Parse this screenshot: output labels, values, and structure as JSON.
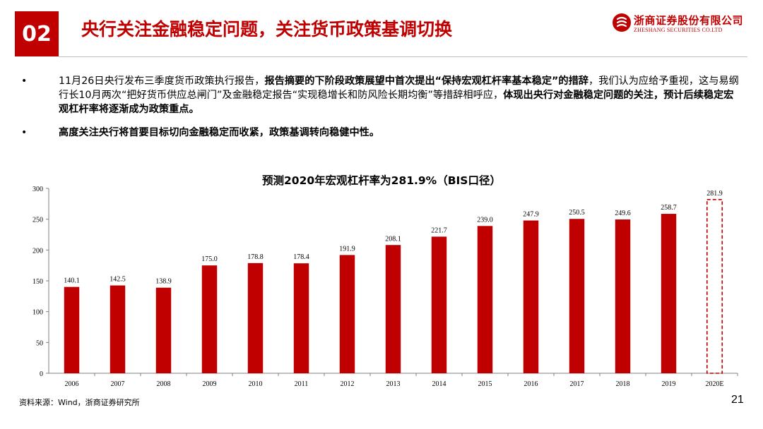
{
  "header": {
    "section_number": "02",
    "title": "央行关注金融稳定问题，关注货币政策基调切换",
    "logo": {
      "name_cn": "浙商证券股份有限公司",
      "name_en": "ZHESHANG SECURITIES CO.LTD"
    }
  },
  "bullets": [
    {
      "parts": [
        {
          "text": "11月26日央行发布三季度货币政策执行报告，",
          "bold": false
        },
        {
          "text": "报告摘要的下阶段政策展望中首次提出“保持宏观杠杆率基本稳定”的措辞",
          "bold": true
        },
        {
          "text": "，我们认为应给予重视，这与易纲行长10月两次“把好货币供应总闸门”及金融稳定报告“实现稳增长和防风险长期均衡”等措辞相呼应，",
          "bold": false
        },
        {
          "text": "体现出央行对金融稳定问题的关注，预计后续稳定宏观杠杆率将逐渐成为政策重点。",
          "bold": true
        }
      ]
    },
    {
      "parts": [
        {
          "text": "高度关注央行将首要目标切向金融稳定而收紧，政策基调转向稳健中性。",
          "bold": true
        }
      ]
    }
  ],
  "chart_data": {
    "type": "bar",
    "title": "预测2020年宏观杠杆率为281.9%（BIS口径）",
    "categories": [
      "2006",
      "2007",
      "2008",
      "2009",
      "2010",
      "2011",
      "2012",
      "2013",
      "2014",
      "2015",
      "2016",
      "2017",
      "2018",
      "2019",
      "2020E"
    ],
    "values": [
      140.1,
      142.5,
      138.9,
      175.0,
      178.8,
      178.4,
      191.9,
      208.1,
      221.7,
      239.0,
      247.9,
      250.5,
      249.6,
      258.7,
      281.9
    ],
    "data_labels": [
      "140.1",
      "142.5",
      "138.9",
      "175.0",
      "178.8",
      "178.4",
      "191.9",
      "208.1",
      "221.7",
      "239.0",
      "247.9",
      "250.5",
      "249.6",
      "258.7",
      "281.9"
    ],
    "forecast_index": 14,
    "ylim": [
      0,
      300
    ],
    "yticks": [
      0,
      50,
      100,
      150,
      200,
      250,
      300
    ],
    "xlabel": "",
    "ylabel": "",
    "grid": false,
    "colors": {
      "bar": "#c00000",
      "forecast_outline": "#c00000",
      "axis": "#808080"
    }
  },
  "footer": {
    "source": "资料来源：Wind，浙商证券研究所",
    "page_number": "21"
  }
}
